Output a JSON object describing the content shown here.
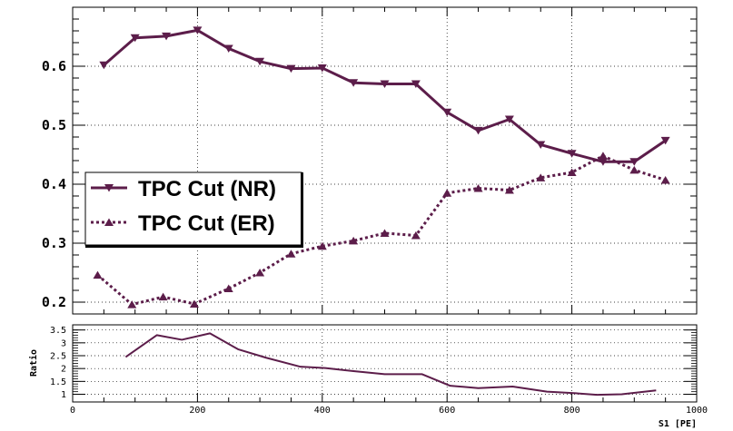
{
  "colors": {
    "series": "#5c1d4a",
    "grid": "#000000",
    "background": "#ffffff"
  },
  "chart_data": [
    {
      "type": "line",
      "x": [
        50,
        100,
        150,
        200,
        250,
        300,
        350,
        400,
        450,
        500,
        550,
        600,
        650,
        700,
        750,
        800,
        850,
        900,
        950
      ],
      "series": [
        {
          "name": "TPC Cut (NR)",
          "marker": "triangle-down",
          "dash": "solid",
          "x": [
            50,
            100,
            150,
            200,
            250,
            300,
            350,
            400,
            450,
            500,
            550,
            600,
            650,
            700,
            750,
            800,
            850,
            900,
            950
          ],
          "values": [
            0.602,
            0.648,
            0.651,
            0.661,
            0.63,
            0.608,
            0.596,
            0.597,
            0.572,
            0.57,
            0.57,
            0.522,
            0.491,
            0.51,
            0.467,
            0.452,
            0.438,
            0.438,
            0.474
          ]
        },
        {
          "name": "TPC Cut (ER)",
          "marker": "triangle-up",
          "dash": "dotted",
          "x": [
            40,
            95,
            145,
            195,
            250,
            300,
            350,
            400,
            450,
            500,
            550,
            600,
            650,
            700,
            750,
            800,
            850,
            900,
            950
          ],
          "values": [
            0.246,
            0.196,
            0.209,
            0.197,
            0.223,
            0.25,
            0.282,
            0.295,
            0.304,
            0.317,
            0.313,
            0.385,
            0.393,
            0.39,
            0.411,
            0.42,
            0.448,
            0.424,
            0.407
          ]
        }
      ],
      "xlim": [
        0,
        1000
      ],
      "ylim": [
        0.18,
        0.7
      ],
      "yticks": [
        0.2,
        0.3,
        0.4,
        0.5,
        0.6
      ],
      "ytick_labels": [
        "0.2",
        "0.3",
        "0.4",
        "0.5",
        "0.6"
      ],
      "grid": true,
      "legend_position": "left-middle"
    },
    {
      "type": "line",
      "ylabel": "Ratio",
      "xlabel": "S1 [PE]",
      "series": [
        {
          "x": [
            85,
            135,
            175,
            220,
            265,
            310,
            365,
            405,
            450,
            500,
            560,
            605,
            650,
            705,
            760,
            800,
            840,
            880,
            935
          ],
          "values": [
            2.45,
            3.3,
            3.12,
            3.37,
            2.75,
            2.42,
            2.07,
            2.02,
            1.9,
            1.78,
            1.78,
            1.33,
            1.24,
            1.3,
            1.1,
            1.05,
            0.98,
            1.0,
            1.15
          ]
        }
      ],
      "xlim": [
        0,
        1000
      ],
      "ylim": [
        0.7,
        3.7
      ],
      "yticks": [
        1,
        1.5,
        2,
        2.5,
        3,
        3.5
      ],
      "ytick_labels": [
        "1",
        "1.5",
        "2",
        "2.5",
        "3",
        "3.5"
      ],
      "xticks": [
        0,
        200,
        400,
        600,
        800,
        1000
      ],
      "xtick_labels": [
        "0",
        "200",
        "400",
        "600",
        "800",
        "1000"
      ],
      "grid": true
    }
  ]
}
